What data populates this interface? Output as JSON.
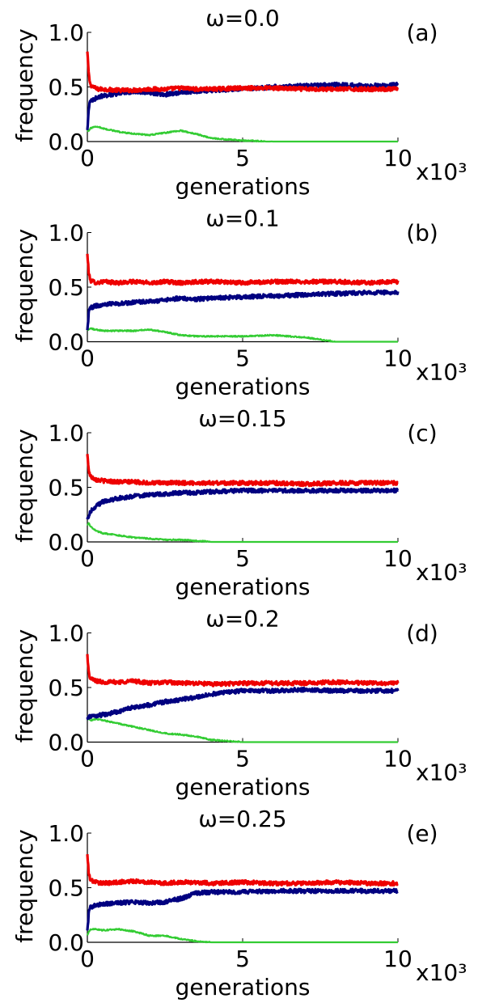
{
  "figure": {
    "xlabel": "generations",
    "ylabel": "frequency",
    "x_multiplier": "x10³",
    "series_colors": [
      "#ee0000",
      "#000080",
      "#33cc33"
    ]
  },
  "chart_data": [
    {
      "type": "line",
      "panel": "(a)",
      "title": "ω=0.0",
      "xlabel": "generations",
      "ylabel": "frequency",
      "xlim": [
        0,
        10
      ],
      "ylim": [
        0,
        1
      ],
      "xticks": [
        0,
        5,
        10
      ],
      "xtick_labels": [
        "0",
        "5",
        "10"
      ],
      "yticks": [
        0,
        0.5,
        1
      ],
      "ytick_labels": [
        "0.0",
        "0.5",
        "1.0"
      ],
      "x_multiplier": "x10³",
      "grid": false,
      "x": [
        0,
        0.05,
        0.1,
        0.3,
        0.5,
        1,
        1.5,
        2,
        2.5,
        3,
        3.5,
        4,
        5,
        6,
        7,
        8,
        9,
        10
      ],
      "series": [
        {
          "color": "#ee0000",
          "values": [
            0.82,
            0.6,
            0.52,
            0.48,
            0.48,
            0.47,
            0.47,
            0.48,
            0.48,
            0.49,
            0.48,
            0.48,
            0.49,
            0.49,
            0.48,
            0.48,
            0.48,
            0.48
          ]
        },
        {
          "color": "#000080",
          "values": [
            0.1,
            0.32,
            0.37,
            0.4,
            0.42,
            0.44,
            0.46,
            0.45,
            0.43,
            0.45,
            0.46,
            0.47,
            0.48,
            0.5,
            0.51,
            0.52,
            0.51,
            0.52
          ]
        },
        {
          "color": "#33cc33",
          "values": [
            0.1,
            0.1,
            0.12,
            0.14,
            0.12,
            0.09,
            0.07,
            0.06,
            0.08,
            0.1,
            0.07,
            0.03,
            0.01,
            0,
            0,
            0,
            0,
            0
          ]
        }
      ]
    },
    {
      "type": "line",
      "panel": "(b)",
      "title": "ω=0.1",
      "xlabel": "generations",
      "ylabel": "frequency",
      "xlim": [
        0,
        10
      ],
      "ylim": [
        0,
        1
      ],
      "xticks": [
        0,
        5,
        10
      ],
      "xtick_labels": [
        "0",
        "5",
        "10"
      ],
      "yticks": [
        0,
        0.5,
        1
      ],
      "ytick_labels": [
        "0.0",
        "0.5",
        "1.0"
      ],
      "x_multiplier": "x10³",
      "grid": false,
      "x": [
        0,
        0.05,
        0.1,
        0.3,
        0.5,
        1,
        1.5,
        2,
        2.5,
        3,
        3.5,
        4,
        5,
        6,
        7,
        8,
        9,
        10
      ],
      "series": [
        {
          "color": "#ee0000",
          "values": [
            0.8,
            0.62,
            0.56,
            0.54,
            0.55,
            0.54,
            0.55,
            0.54,
            0.55,
            0.54,
            0.55,
            0.55,
            0.54,
            0.55,
            0.55,
            0.55,
            0.54,
            0.55
          ]
        },
        {
          "color": "#000080",
          "values": [
            0.1,
            0.28,
            0.31,
            0.33,
            0.34,
            0.35,
            0.36,
            0.37,
            0.38,
            0.4,
            0.39,
            0.4,
            0.41,
            0.42,
            0.43,
            0.44,
            0.45,
            0.45
          ]
        },
        {
          "color": "#33cc33",
          "values": [
            0.1,
            0.12,
            0.12,
            0.11,
            0.1,
            0.1,
            0.1,
            0.11,
            0.09,
            0.06,
            0.05,
            0.05,
            0.05,
            0.06,
            0.04,
            0,
            0,
            0
          ]
        }
      ]
    },
    {
      "type": "line",
      "panel": "(c)",
      "title": "ω=0.15",
      "xlabel": "generations",
      "ylabel": "frequency",
      "xlim": [
        0,
        10
      ],
      "ylim": [
        0,
        1
      ],
      "xticks": [
        0,
        5,
        10
      ],
      "xtick_labels": [
        "0",
        "5",
        "10"
      ],
      "yticks": [
        0,
        0.5,
        1
      ],
      "ytick_labels": [
        "0.0",
        "0.5",
        "1.0"
      ],
      "x_multiplier": "x10³",
      "grid": false,
      "x": [
        0,
        0.05,
        0.1,
        0.3,
        0.5,
        1,
        1.5,
        2,
        2.5,
        3,
        3.5,
        4,
        5,
        6,
        7,
        8,
        9,
        10
      ],
      "series": [
        {
          "color": "#ee0000",
          "values": [
            0.8,
            0.65,
            0.6,
            0.57,
            0.56,
            0.55,
            0.55,
            0.54,
            0.54,
            0.54,
            0.54,
            0.54,
            0.54,
            0.54,
            0.53,
            0.54,
            0.54,
            0.54
          ]
        },
        {
          "color": "#000080",
          "values": [
            0.2,
            0.24,
            0.28,
            0.33,
            0.37,
            0.4,
            0.42,
            0.43,
            0.44,
            0.45,
            0.45,
            0.46,
            0.47,
            0.47,
            0.47,
            0.47,
            0.47,
            0.47
          ]
        },
        {
          "color": "#33cc33",
          "values": [
            0.16,
            0.17,
            0.14,
            0.1,
            0.08,
            0.06,
            0.04,
            0.03,
            0.02,
            0.02,
            0.01,
            0,
            0,
            0,
            0,
            0,
            0,
            0
          ]
        }
      ]
    },
    {
      "type": "line",
      "panel": "(d)",
      "title": "ω=0.2",
      "xlabel": "generations",
      "ylabel": "frequency",
      "xlim": [
        0,
        10
      ],
      "ylim": [
        0,
        1
      ],
      "xticks": [
        0,
        5,
        10
      ],
      "xtick_labels": [
        "0",
        "5",
        "10"
      ],
      "yticks": [
        0,
        0.5,
        1
      ],
      "ytick_labels": [
        "0.0",
        "0.5",
        "1.0"
      ],
      "x_multiplier": "x10³",
      "grid": false,
      "x": [
        0,
        0.05,
        0.1,
        0.3,
        0.5,
        1,
        1.5,
        2,
        2.5,
        3,
        3.5,
        4,
        5,
        6,
        7,
        8,
        9,
        10
      ],
      "series": [
        {
          "color": "#ee0000",
          "values": [
            0.8,
            0.62,
            0.58,
            0.56,
            0.55,
            0.55,
            0.56,
            0.54,
            0.55,
            0.54,
            0.54,
            0.53,
            0.54,
            0.54,
            0.54,
            0.55,
            0.54,
            0.54
          ]
        },
        {
          "color": "#000080",
          "values": [
            0.22,
            0.23,
            0.24,
            0.24,
            0.25,
            0.28,
            0.32,
            0.34,
            0.37,
            0.39,
            0.41,
            0.44,
            0.47,
            0.47,
            0.48,
            0.47,
            0.47,
            0.47
          ]
        },
        {
          "color": "#33cc33",
          "values": [
            0.2,
            0.22,
            0.2,
            0.21,
            0.2,
            0.17,
            0.14,
            0.11,
            0.08,
            0.07,
            0.05,
            0.02,
            0,
            0,
            0,
            0,
            0,
            0
          ]
        }
      ]
    },
    {
      "type": "line",
      "panel": "(e)",
      "title": "ω=0.25",
      "xlabel": "generations",
      "ylabel": "frequency",
      "xlim": [
        0,
        10
      ],
      "ylim": [
        0,
        1
      ],
      "xticks": [
        0,
        5,
        10
      ],
      "xtick_labels": [
        "0",
        "5",
        "10"
      ],
      "yticks": [
        0,
        0.5,
        1
      ],
      "ytick_labels": [
        "0.0",
        "0.5",
        "1.0"
      ],
      "x_multiplier": "x10³",
      "grid": false,
      "x": [
        0,
        0.05,
        0.1,
        0.3,
        0.5,
        1,
        1.5,
        2,
        2.5,
        3,
        3.5,
        4,
        5,
        6,
        7,
        8,
        9,
        10
      ],
      "series": [
        {
          "color": "#ee0000",
          "values": [
            0.8,
            0.62,
            0.57,
            0.55,
            0.54,
            0.55,
            0.56,
            0.55,
            0.54,
            0.55,
            0.55,
            0.54,
            0.55,
            0.54,
            0.54,
            0.55,
            0.54,
            0.54
          ]
        },
        {
          "color": "#000080",
          "values": [
            0.1,
            0.28,
            0.32,
            0.34,
            0.35,
            0.36,
            0.37,
            0.36,
            0.37,
            0.4,
            0.45,
            0.46,
            0.46,
            0.47,
            0.47,
            0.47,
            0.47,
            0.47
          ]
        },
        {
          "color": "#33cc33",
          "values": [
            0.06,
            0.1,
            0.12,
            0.12,
            0.11,
            0.12,
            0.1,
            0.06,
            0.06,
            0.03,
            0.01,
            0,
            0,
            0,
            0,
            0,
            0,
            0
          ]
        }
      ]
    }
  ]
}
